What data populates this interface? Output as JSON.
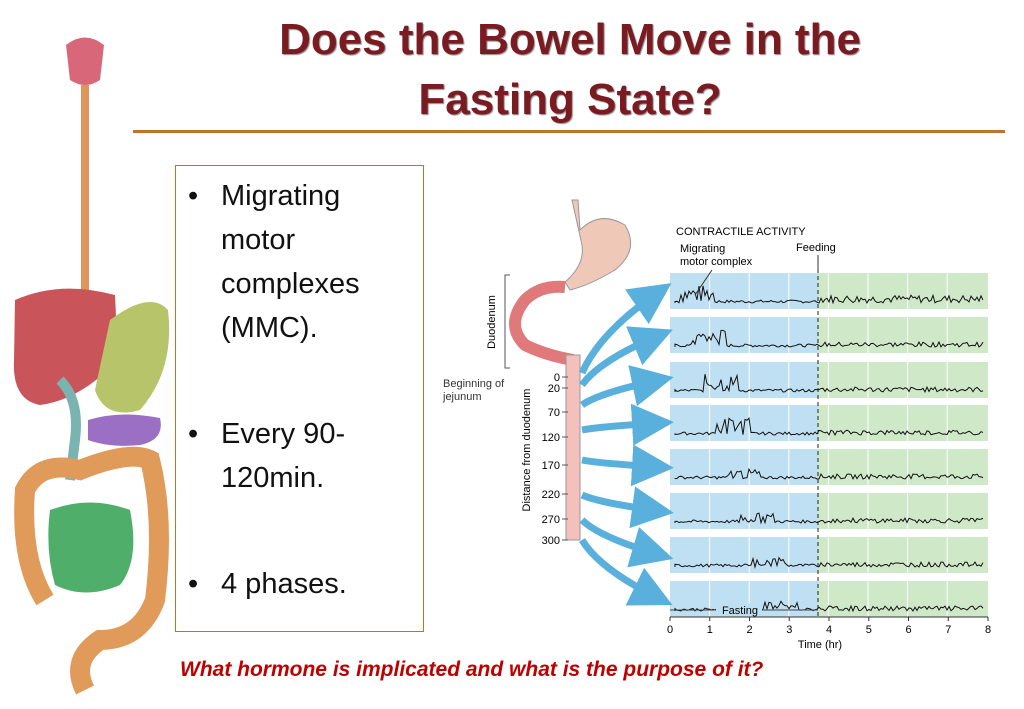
{
  "title_lines": [
    "Does the Bowel Move in the",
    "Fasting State?"
  ],
  "bullets": [
    "Migrating motor complexes (MMC).",
    "Every 90-120min.",
    "4 phases."
  ],
  "figure": {
    "heading": "CONTRACTILE ACTIVITY",
    "mmc_label": "Migrating motor complex",
    "feeding_label": "Feeding",
    "fasting_label": "Fasting",
    "duodenum_label": "Duodenum",
    "jejunum_label": "Beginning of jejunum",
    "distance_label": "Distance from duodenum",
    "distance_ticks": [
      "0",
      "20",
      "70",
      "120",
      "170",
      "220",
      "270",
      "300"
    ],
    "time_label": "Time (hr)",
    "time_ticks": [
      "0",
      "1",
      "2",
      "3",
      "4",
      "5",
      "6",
      "7",
      "8"
    ]
  },
  "question": "What hormone is implicated and what is the purpose of it?"
}
